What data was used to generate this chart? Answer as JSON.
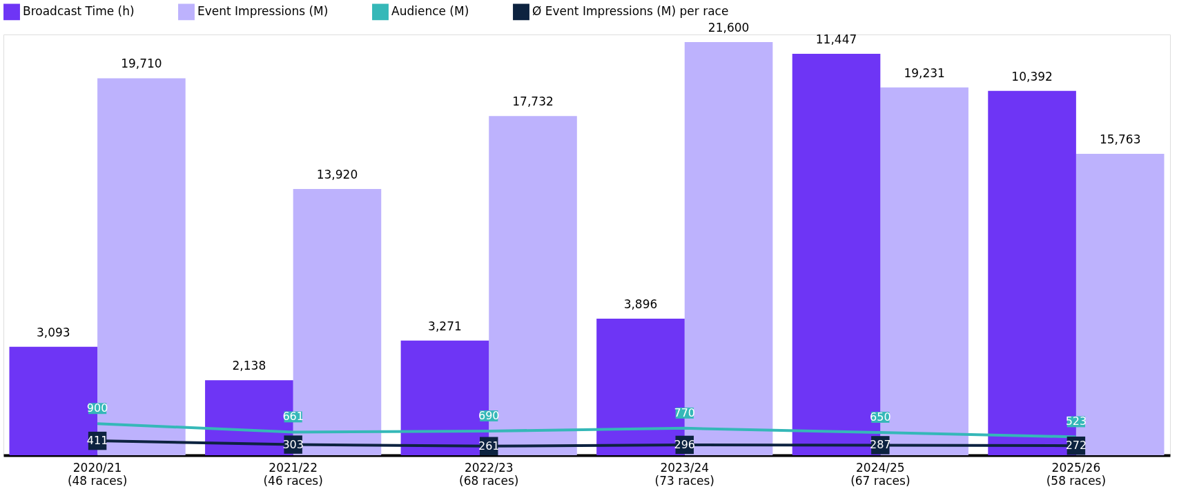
{
  "chart_data": {
    "type": "bar",
    "data_labels": true,
    "legend": "top",
    "categories": [
      "2020/21\n(48 races)",
      "2021/22\n(46 races)",
      "2022/23\n(68 races)",
      "2023/24\n(73 races)",
      "2024/25\n(67 races)",
      "2025/26\n(58 races)"
    ],
    "series": [
      {
        "name": "Broadcast Time (h)",
        "axis": "y2",
        "color": "#6e35f5",
        "values": [
          3093,
          2138,
          3271,
          3896,
          11447,
          10392
        ],
        "value_labels": [
          "3,093",
          "2,138",
          "3,271",
          "3,896",
          "11,447",
          "10,392"
        ]
      },
      {
        "name": "Event Impressions (M)",
        "color": "#bdb2fd",
        "values": [
          19710,
          13920,
          17732,
          21600,
          19231,
          15763
        ],
        "value_labels": [
          "19,710",
          "13,920",
          "17,732",
          "21,600",
          "19,231",
          "15,763"
        ]
      },
      {
        "name": "Audience (M)",
        "type": "line",
        "axis": "y2",
        "color": "#35b8b8",
        "values": [
          900,
          661,
          690,
          770,
          650,
          523
        ]
      },
      {
        "name": "Ø Event Impressions (M) per race",
        "type": "line",
        "marker": "square",
        "axis": "y2",
        "color": "#0d2340",
        "values": [
          411,
          303,
          261,
          296,
          287,
          272
        ]
      }
    ]
  }
}
